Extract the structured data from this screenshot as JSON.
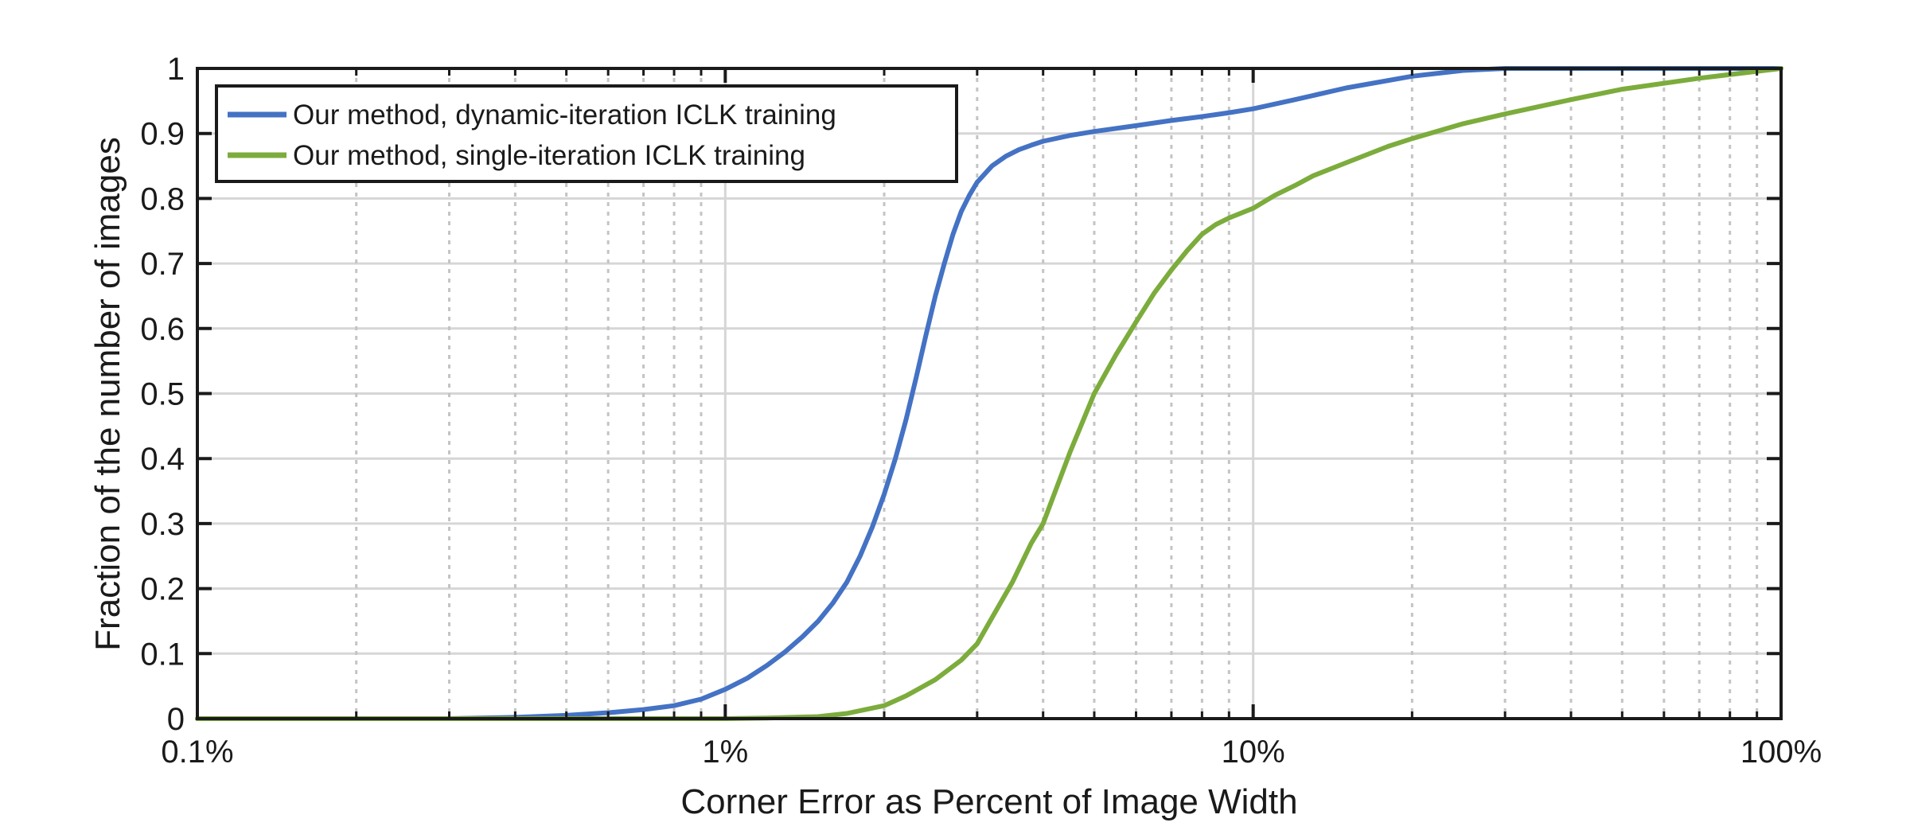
{
  "chart_data": {
    "type": "line",
    "xscale": "log",
    "xlim": [
      0.1,
      100
    ],
    "ylim": [
      0,
      1
    ],
    "xlabel": "Corner Error as Percent of Image Width",
    "ylabel": "Fraction of the number of images",
    "grid": true,
    "legend_position": "top-left",
    "x_ticks": [
      {
        "value": 0.1,
        "label": "0.1%"
      },
      {
        "value": 1,
        "label": "1%"
      },
      {
        "value": 10,
        "label": "10%"
      },
      {
        "value": 100,
        "label": "100%"
      }
    ],
    "y_ticks": [
      {
        "value": 0,
        "label": "0"
      },
      {
        "value": 0.1,
        "label": "0.1"
      },
      {
        "value": 0.2,
        "label": "0.2"
      },
      {
        "value": 0.3,
        "label": "0.3"
      },
      {
        "value": 0.4,
        "label": "0.4"
      },
      {
        "value": 0.5,
        "label": "0.5"
      },
      {
        "value": 0.6,
        "label": "0.6"
      },
      {
        "value": 0.7,
        "label": "0.7"
      },
      {
        "value": 0.8,
        "label": "0.8"
      },
      {
        "value": 0.9,
        "label": "0.9"
      },
      {
        "value": 1,
        "label": "1"
      }
    ],
    "series": [
      {
        "name": "Our method, dynamic-iteration ICLK training",
        "color": "#4472c4",
        "x": [
          0.1,
          0.2,
          0.3,
          0.4,
          0.5,
          0.6,
          0.7,
          0.8,
          0.9,
          1.0,
          1.1,
          1.2,
          1.3,
          1.4,
          1.5,
          1.6,
          1.7,
          1.8,
          1.9,
          2.0,
          2.1,
          2.2,
          2.3,
          2.4,
          2.5,
          2.6,
          2.7,
          2.8,
          2.9,
          3.0,
          3.2,
          3.4,
          3.6,
          3.8,
          4.0,
          4.5,
          5.0,
          6.0,
          7.0,
          8.0,
          9.0,
          10,
          12,
          15,
          20,
          25,
          30,
          50,
          100
        ],
        "y": [
          0,
          0,
          0,
          0.002,
          0.005,
          0.009,
          0.014,
          0.02,
          0.03,
          0.045,
          0.062,
          0.082,
          0.103,
          0.126,
          0.15,
          0.178,
          0.21,
          0.25,
          0.295,
          0.345,
          0.4,
          0.46,
          0.525,
          0.59,
          0.65,
          0.7,
          0.745,
          0.78,
          0.805,
          0.825,
          0.85,
          0.865,
          0.875,
          0.882,
          0.888,
          0.897,
          0.903,
          0.912,
          0.92,
          0.926,
          0.932,
          0.938,
          0.952,
          0.97,
          0.988,
          0.997,
          1.0,
          1.0,
          1.0
        ]
      },
      {
        "name": "Our method, single-iteration ICLK training",
        "color": "#7cac3c",
        "x": [
          0.1,
          0.5,
          1.0,
          1.2,
          1.5,
          1.7,
          2.0,
          2.2,
          2.5,
          2.8,
          3.0,
          3.2,
          3.5,
          3.8,
          4.0,
          4.5,
          5.0,
          5.5,
          6.0,
          6.5,
          7.0,
          7.5,
          8.0,
          8.5,
          9.0,
          10,
          11,
          12,
          13,
          15,
          18,
          20,
          25,
          30,
          40,
          50,
          70,
          100
        ],
        "y": [
          0,
          0,
          0,
          0.001,
          0.003,
          0.008,
          0.02,
          0.035,
          0.06,
          0.09,
          0.115,
          0.155,
          0.21,
          0.27,
          0.3,
          0.41,
          0.5,
          0.56,
          0.61,
          0.655,
          0.69,
          0.72,
          0.745,
          0.76,
          0.77,
          0.785,
          0.805,
          0.82,
          0.835,
          0.855,
          0.88,
          0.892,
          0.915,
          0.93,
          0.952,
          0.968,
          0.985,
          1.0
        ]
      }
    ]
  }
}
